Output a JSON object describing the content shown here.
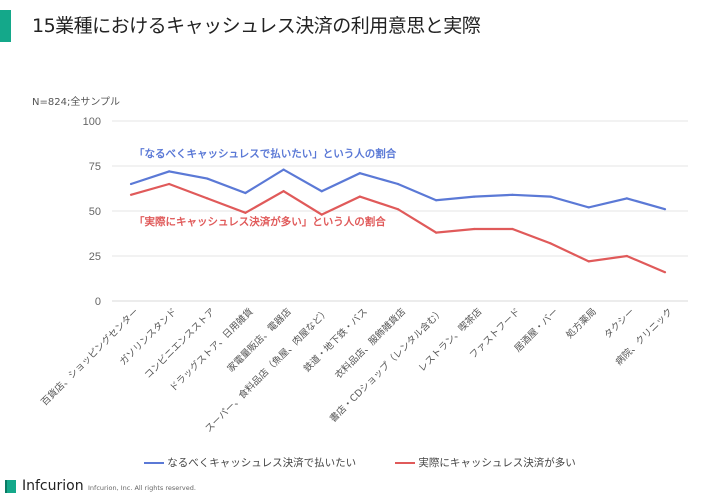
{
  "header": {
    "title": "15業種におけるキャッシュレス決済の利用意思と実際"
  },
  "sample_note": "N=824;全サンプル",
  "footer": {
    "brand": "Infcurion",
    "copyright": "Infcurion, Inc.  All rights reserved."
  },
  "colors": {
    "accent": "#14a88a",
    "blue": "#5b79d6",
    "red": "#e05a5a",
    "grid": "#e6e6e6"
  },
  "chart_data": {
    "type": "line",
    "title": "15業種におけるキャッシュレス決済の利用意思と実際",
    "xlabel": "",
    "ylabel": "",
    "ylim": [
      0,
      100
    ],
    "yticks": [
      "0",
      "25",
      "50",
      "75",
      "100"
    ],
    "grid": true,
    "legend": "bottom",
    "categories": [
      "百貨店、ショッピングセンター",
      "ガソリンスタンド",
      "コンビニエンスストア",
      "ドラッグストア、日用雑貨",
      "家電量販店、電器店",
      "スーパー、食料品店（魚屋、肉屋など）",
      "鉄道・地下鉄・バス",
      "衣料品店、服飾雑貨店",
      "書店・CDショップ（レンタル含む）",
      "レストラン、喫茶店",
      "ファストフード",
      "居酒屋・バー",
      "処方薬局",
      "タクシー",
      "病院、クリニック"
    ],
    "series": [
      {
        "name": "なるべくキャッシュレス決済で払いたい",
        "color": "#5b79d6",
        "annotation": "「なるべくキャッシュレスで払いたい」という人の割合",
        "values": [
          65,
          72,
          68,
          60,
          73,
          61,
          71,
          65,
          56,
          58,
          59,
          58,
          52,
          57,
          51
        ]
      },
      {
        "name": "実際にキャッシュレス決済が多い",
        "color": "#e05a5a",
        "annotation": "「実際にキャッシュレス決済が多い」という人の割合",
        "values": [
          59,
          65,
          57,
          49,
          61,
          48,
          58,
          51,
          38,
          40,
          40,
          32,
          22,
          25,
          16
        ]
      }
    ]
  }
}
